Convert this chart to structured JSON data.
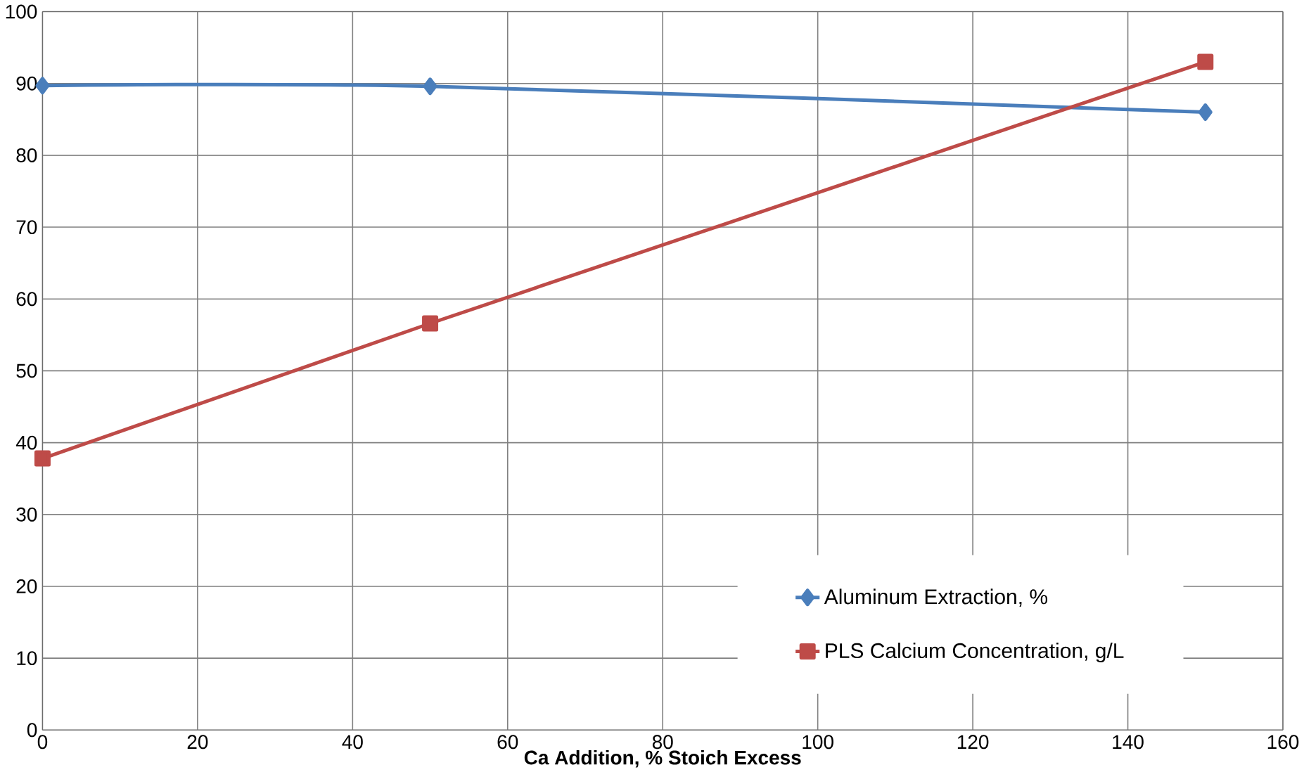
{
  "chart_data": {
    "type": "line",
    "xlabel": "Ca Addition, % Stoich Excess",
    "x": [
      0,
      50,
      150
    ],
    "series": [
      {
        "name": "Aluminum Extraction,  %",
        "color": "#4a7ebb",
        "marker": "diamond",
        "values": [
          89.7,
          89.6,
          86.0
        ]
      },
      {
        "name": "PLS Calcium Concentration, g/L",
        "color": "#be4b48",
        "marker": "square",
        "values": [
          37.8,
          56.6,
          93.0
        ]
      }
    ],
    "xlim": [
      0,
      160
    ],
    "xticks": [
      0,
      20,
      40,
      60,
      80,
      100,
      120,
      140,
      160
    ],
    "ylim": [
      0,
      100
    ],
    "yticks": [
      0,
      10,
      20,
      30,
      40,
      50,
      60,
      70,
      80,
      90,
      100
    ],
    "grid": true,
    "legend": "bottom right"
  }
}
